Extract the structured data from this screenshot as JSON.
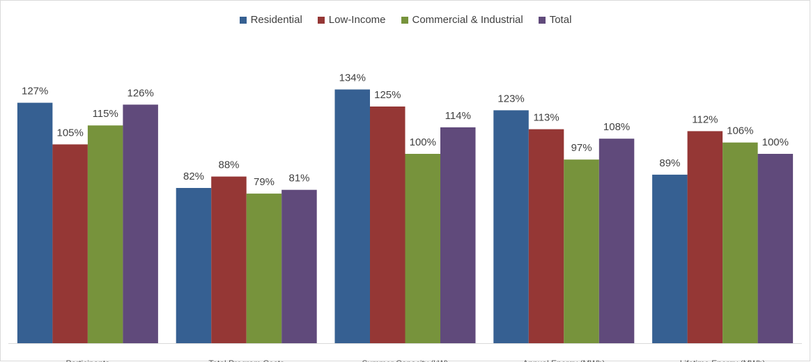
{
  "chart_data": {
    "type": "bar",
    "title": "",
    "xlabel": "",
    "ylabel": "",
    "ylim": [
      0,
      140
    ],
    "grid": false,
    "legend_position": "top",
    "categories": [
      "Participants",
      "Total Program Costs",
      "Summer Capacity (kW)",
      "Annual Energy (MWh)",
      "Lifetime Energy (MWh)"
    ],
    "series": [
      {
        "name": "Residential",
        "color": "#366092",
        "values": [
          127,
          82,
          134,
          123,
          89
        ],
        "labels": [
          "127%",
          "82%",
          "134%",
          "123%",
          "89%"
        ]
      },
      {
        "name": "Low-Income",
        "color": "#953735",
        "values": [
          105,
          88,
          125,
          113,
          112
        ],
        "labels": [
          "105%",
          "88%",
          "125%",
          "113%",
          "112%"
        ]
      },
      {
        "name": "Commercial & Industrial",
        "color": "#77933c",
        "values": [
          115,
          79,
          100,
          97,
          106
        ],
        "labels": [
          "115%",
          "79%",
          "100%",
          "97%",
          "106%"
        ]
      },
      {
        "name": "Total",
        "color": "#604a7b",
        "values": [
          126,
          81,
          114,
          108,
          100
        ],
        "labels": [
          "126%",
          "81%",
          "114%",
          "108%",
          "100%"
        ]
      }
    ]
  }
}
